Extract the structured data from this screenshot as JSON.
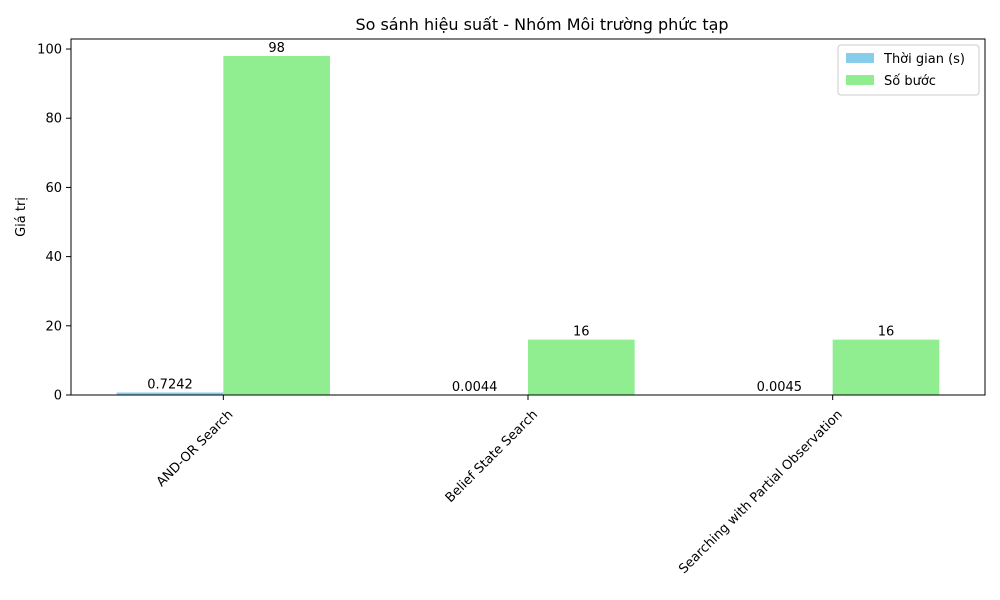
{
  "chart_data": {
    "type": "bar",
    "title": "So sánh hiệu suất - Nhóm Môi trường phức tạp",
    "xlabel": "",
    "ylabel": "Giá trị",
    "categories": [
      "AND-OR Search",
      "Belief State Search",
      "Searching with Partial Observation"
    ],
    "series": [
      {
        "name": "Thời gian (s)",
        "values": [
          0.7242,
          0.0044,
          0.0045
        ],
        "labels": [
          "0.7242",
          "0.0044",
          "0.0045"
        ],
        "color": "#87ceeb"
      },
      {
        "name": "Số bước",
        "values": [
          98,
          16,
          16
        ],
        "labels": [
          "98",
          "16",
          "16"
        ],
        "color": "#90ee90"
      }
    ],
    "ylim": [
      0,
      102.9
    ],
    "yticks": [
      "0",
      "20",
      "40",
      "60",
      "80",
      "100"
    ],
    "grid": false,
    "legend": "top-right",
    "xtick_rotation": 45
  }
}
